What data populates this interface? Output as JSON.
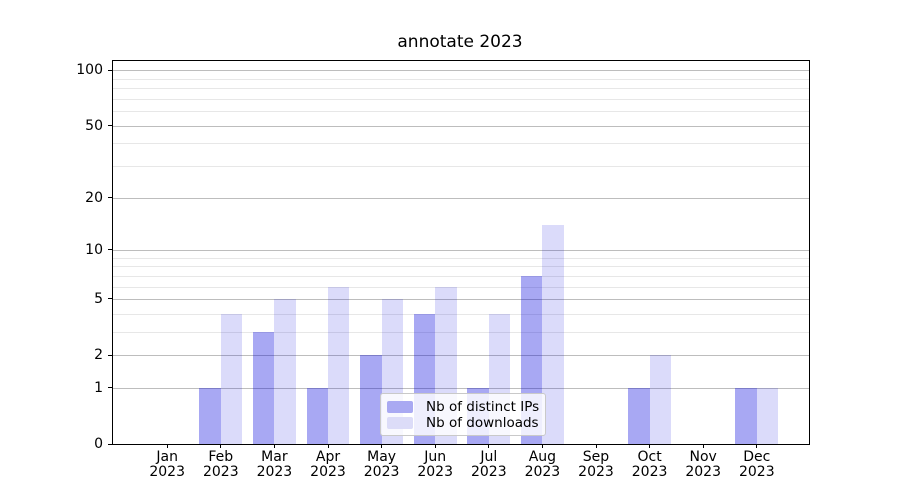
{
  "figure": {
    "title": "annotate 2023"
  },
  "chart_data": {
    "type": "bar",
    "title": "annotate 2023",
    "categories": [
      "Jan",
      "Feb",
      "Mar",
      "Apr",
      "May",
      "Jun",
      "Jul",
      "Aug",
      "Sep",
      "Oct",
      "Nov",
      "Dec"
    ],
    "category_year": "2023",
    "series": [
      {
        "name": "Nb of distinct IPs",
        "values": [
          0,
          1,
          3,
          1,
          2,
          4,
          1,
          7,
          0,
          1,
          0,
          1
        ],
        "color": "#a9a9f2",
        "fill_rgba": "rgba(0,0,220,0.34)"
      },
      {
        "name": "Nb of downloads",
        "values": [
          0,
          4,
          5,
          6,
          5,
          6,
          4,
          14,
          0,
          2,
          0,
          1
        ],
        "color": "#dcdcf8",
        "fill_rgba": "rgba(0,0,220,0.14)"
      }
    ],
    "y_axis": {
      "scale": "log1p",
      "ticks": [
        0,
        1,
        2,
        5,
        10,
        20,
        50,
        100
      ],
      "minor_gridlines": [
        3,
        4,
        6,
        7,
        8,
        9,
        30,
        40,
        60,
        70,
        80,
        90
      ],
      "ylim": [
        0,
        112
      ]
    },
    "x_axis": {
      "tick_label_lines": 2
    },
    "legend": {
      "position": "lower-center",
      "items": [
        "Nb of distinct IPs",
        "Nb of downloads"
      ]
    },
    "grid": true,
    "colors": {
      "grid_major": "#bdbdbd",
      "grid_minor": "#e7e7e7",
      "spine": "#000000",
      "text": "#000000",
      "background": "#ffffff"
    }
  }
}
